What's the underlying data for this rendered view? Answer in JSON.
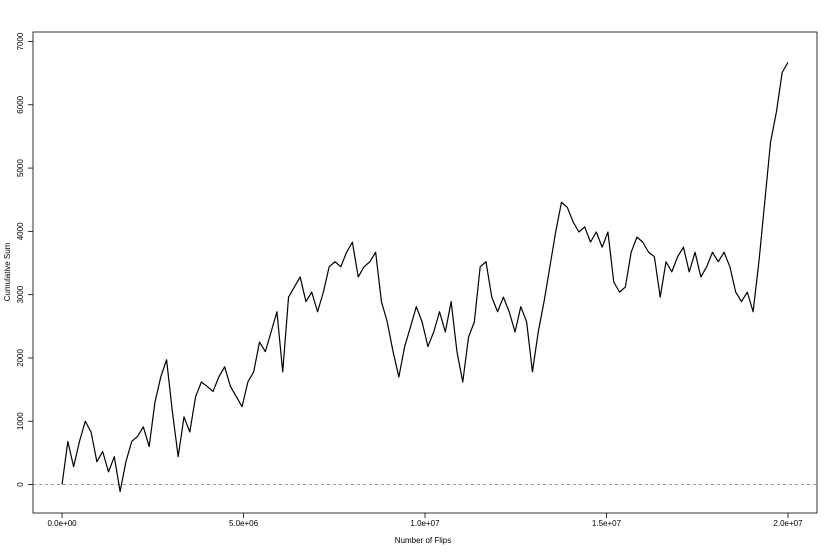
{
  "chart_data": {
    "type": "line",
    "xlabel": "Number of Flips",
    "ylabel": "Cumulative Sum",
    "x": [
      0,
      160000,
      320000,
      480000,
      640000,
      800000,
      960000,
      1120000,
      1280000,
      1440000,
      1600000,
      1760000,
      1920000,
      2080000,
      2240000,
      2400000,
      2560000,
      2720000,
      2880000,
      3040000,
      3200000,
      3360000,
      3520000,
      3680000,
      3840000,
      4000000,
      4160000,
      4320000,
      4480000,
      4640000,
      4800000,
      4960000,
      5120000,
      5280000,
      5440000,
      5600000,
      5760000,
      5920000,
      6080000,
      6240000,
      6400000,
      6560000,
      6720000,
      6880000,
      7040000,
      7200000,
      7360000,
      7520000,
      7680000,
      7840000,
      8000000,
      8160000,
      8320000,
      8480000,
      8640000,
      8800000,
      8960000,
      9120000,
      9280000,
      9440000,
      9600000,
      9760000,
      9920000,
      10080000,
      10240000,
      10400000,
      10560000,
      10720000,
      10880000,
      11040000,
      11200000,
      11360000,
      11520000,
      11680000,
      11840000,
      12000000,
      12160000,
      12320000,
      12480000,
      12640000,
      12800000,
      12960000,
      13120000,
      13280000,
      13440000,
      13600000,
      13760000,
      13920000,
      14080000,
      14240000,
      14400000,
      14560000,
      14720000,
      14880000,
      15040000,
      15200000,
      15360000,
      15520000,
      15680000,
      15840000,
      16000000,
      16160000,
      16320000,
      16480000,
      16640000,
      16800000,
      16960000,
      17120000,
      17280000,
      17440000,
      17600000,
      17760000,
      17920000,
      18080000,
      18240000,
      18400000,
      18560000,
      18720000,
      18880000,
      19040000,
      19200000,
      19360000,
      19520000,
      19680000,
      19840000,
      20000000
    ],
    "values": [
      0,
      680,
      280,
      680,
      1000,
      830,
      360,
      520,
      200,
      440,
      -110,
      360,
      680,
      760,
      910,
      600,
      1300,
      1700,
      1970,
      1150,
      440,
      1070,
      830,
      1390,
      1620,
      1550,
      1470,
      1700,
      1860,
      1550,
      1390,
      1230,
      1620,
      1780,
      2250,
      2100,
      2410,
      2730,
      1780,
      2960,
      3120,
      3280,
      2890,
      3040,
      2730,
      3040,
      3440,
      3520,
      3440,
      3670,
      3830,
      3280,
      3440,
      3520,
      3670,
      2890,
      2570,
      2100,
      1700,
      2180,
      2490,
      2810,
      2570,
      2180,
      2410,
      2730,
      2410,
      2890,
      2100,
      1620,
      2330,
      2570,
      3440,
      3520,
      2960,
      2730,
      2960,
      2730,
      2410,
      2810,
      2570,
      1780,
      2410,
      2890,
      3440,
      3990,
      4460,
      4380,
      4150,
      3990,
      4070,
      3830,
      3990,
      3750,
      3990,
      3200,
      3040,
      3120,
      3670,
      3910,
      3830,
      3670,
      3600,
      2960,
      3520,
      3360,
      3600,
      3750,
      3360,
      3670,
      3280,
      3440,
      3670,
      3520,
      3670,
      3440,
      3040,
      2890,
      3040,
      2730,
      3520,
      4460,
      5410,
      5880,
      6510,
      6670
    ],
    "color": "#000000",
    "xlim": [
      -800000,
      20800000
    ],
    "ylim": [
      -450,
      7150
    ],
    "xticks": [
      {
        "value": 0,
        "label": "0.0e+00"
      },
      {
        "value": 5000000,
        "label": "5.0e+06"
      },
      {
        "value": 10000000,
        "label": "1.0e+07"
      },
      {
        "value": 15000000,
        "label": "1.5e+07"
      },
      {
        "value": 20000000,
        "label": "2.0e+07"
      }
    ],
    "yticks": [
      0,
      1000,
      2000,
      3000,
      4000,
      5000,
      6000,
      7000
    ],
    "hline": 0
  }
}
